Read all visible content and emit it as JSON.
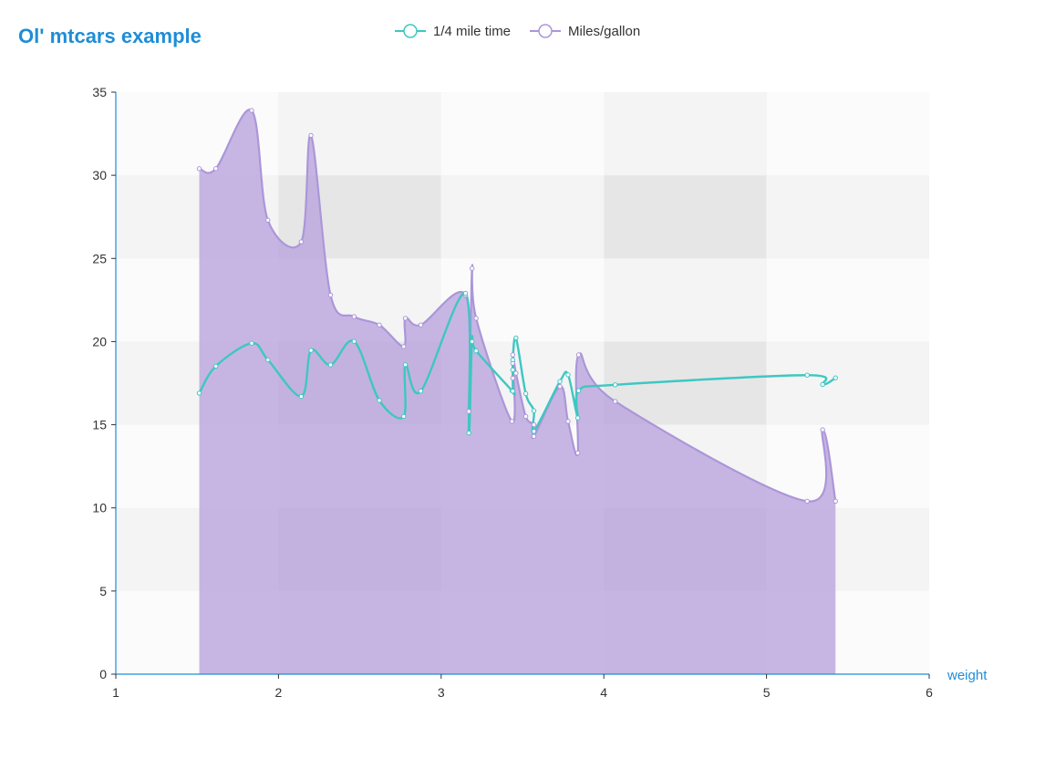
{
  "chart_data": {
    "type": "line",
    "title": "Ol' mtcars example",
    "xlabel": "weight",
    "ylabel": "",
    "xlim": [
      1,
      6
    ],
    "ylim": [
      0,
      35
    ],
    "x_ticks": [
      1,
      2,
      3,
      4,
      5,
      6
    ],
    "y_ticks": [
      0,
      5,
      10,
      15,
      20,
      25,
      30,
      35
    ],
    "grid": true,
    "legend_position": "top-center",
    "colors": {
      "title": "#1f8dd6",
      "axis": "#1f8dd6",
      "qsec": "#3ec7c2",
      "mpg_line": "#ab96d9",
      "mpg_fill": "#b8a3dc",
      "band_light": "#f4f4f4",
      "band_dark": "#e6e6e6",
      "plot_bg": "#fbfbfb"
    },
    "series": [
      {
        "name": "1/4 mile time",
        "style": "line",
        "points": [
          [
            1.513,
            16.9
          ],
          [
            1.615,
            18.52
          ],
          [
            1.835,
            19.9
          ],
          [
            1.935,
            18.9
          ],
          [
            2.14,
            16.7
          ],
          [
            2.2,
            19.47
          ],
          [
            2.32,
            18.6
          ],
          [
            2.465,
            20.01
          ],
          [
            2.62,
            16.46
          ],
          [
            2.77,
            15.5
          ],
          [
            2.78,
            18.61
          ],
          [
            2.875,
            17.02
          ],
          [
            3.15,
            22.9
          ],
          [
            3.17,
            14.5
          ],
          [
            3.19,
            20.0
          ],
          [
            3.215,
            19.44
          ],
          [
            3.435,
            17.05
          ],
          [
            3.44,
            17.02
          ],
          [
            3.44,
            18.3
          ],
          [
            3.44,
            18.9
          ],
          [
            3.46,
            20.22
          ],
          [
            3.52,
            16.87
          ],
          [
            3.57,
            15.84
          ],
          [
            3.57,
            14.6
          ],
          [
            3.73,
            17.6
          ],
          [
            3.78,
            18.0
          ],
          [
            3.84,
            15.41
          ],
          [
            3.845,
            17.05
          ],
          [
            4.07,
            17.4
          ],
          [
            5.25,
            17.98
          ],
          [
            5.345,
            17.42
          ],
          [
            5.424,
            17.82
          ]
        ]
      },
      {
        "name": "Miles/gallon",
        "style": "area",
        "points": [
          [
            1.513,
            30.4
          ],
          [
            1.615,
            30.4
          ],
          [
            1.835,
            33.9
          ],
          [
            1.935,
            27.3
          ],
          [
            2.14,
            26.0
          ],
          [
            2.2,
            32.4
          ],
          [
            2.32,
            22.8
          ],
          [
            2.465,
            21.5
          ],
          [
            2.62,
            21.0
          ],
          [
            2.77,
            19.7
          ],
          [
            2.78,
            21.4
          ],
          [
            2.875,
            21.0
          ],
          [
            3.15,
            22.8
          ],
          [
            3.17,
            15.8
          ],
          [
            3.19,
            24.4
          ],
          [
            3.215,
            21.4
          ],
          [
            3.435,
            15.2
          ],
          [
            3.44,
            18.7
          ],
          [
            3.44,
            17.8
          ],
          [
            3.44,
            19.2
          ],
          [
            3.46,
            18.1
          ],
          [
            3.52,
            15.5
          ],
          [
            3.57,
            15.0
          ],
          [
            3.57,
            14.3
          ],
          [
            3.73,
            17.3
          ],
          [
            3.78,
            15.2
          ],
          [
            3.84,
            13.3
          ],
          [
            3.845,
            19.2
          ],
          [
            4.07,
            16.4
          ],
          [
            5.25,
            10.4
          ],
          [
            5.345,
            14.7
          ],
          [
            5.424,
            10.4
          ]
        ]
      }
    ]
  }
}
